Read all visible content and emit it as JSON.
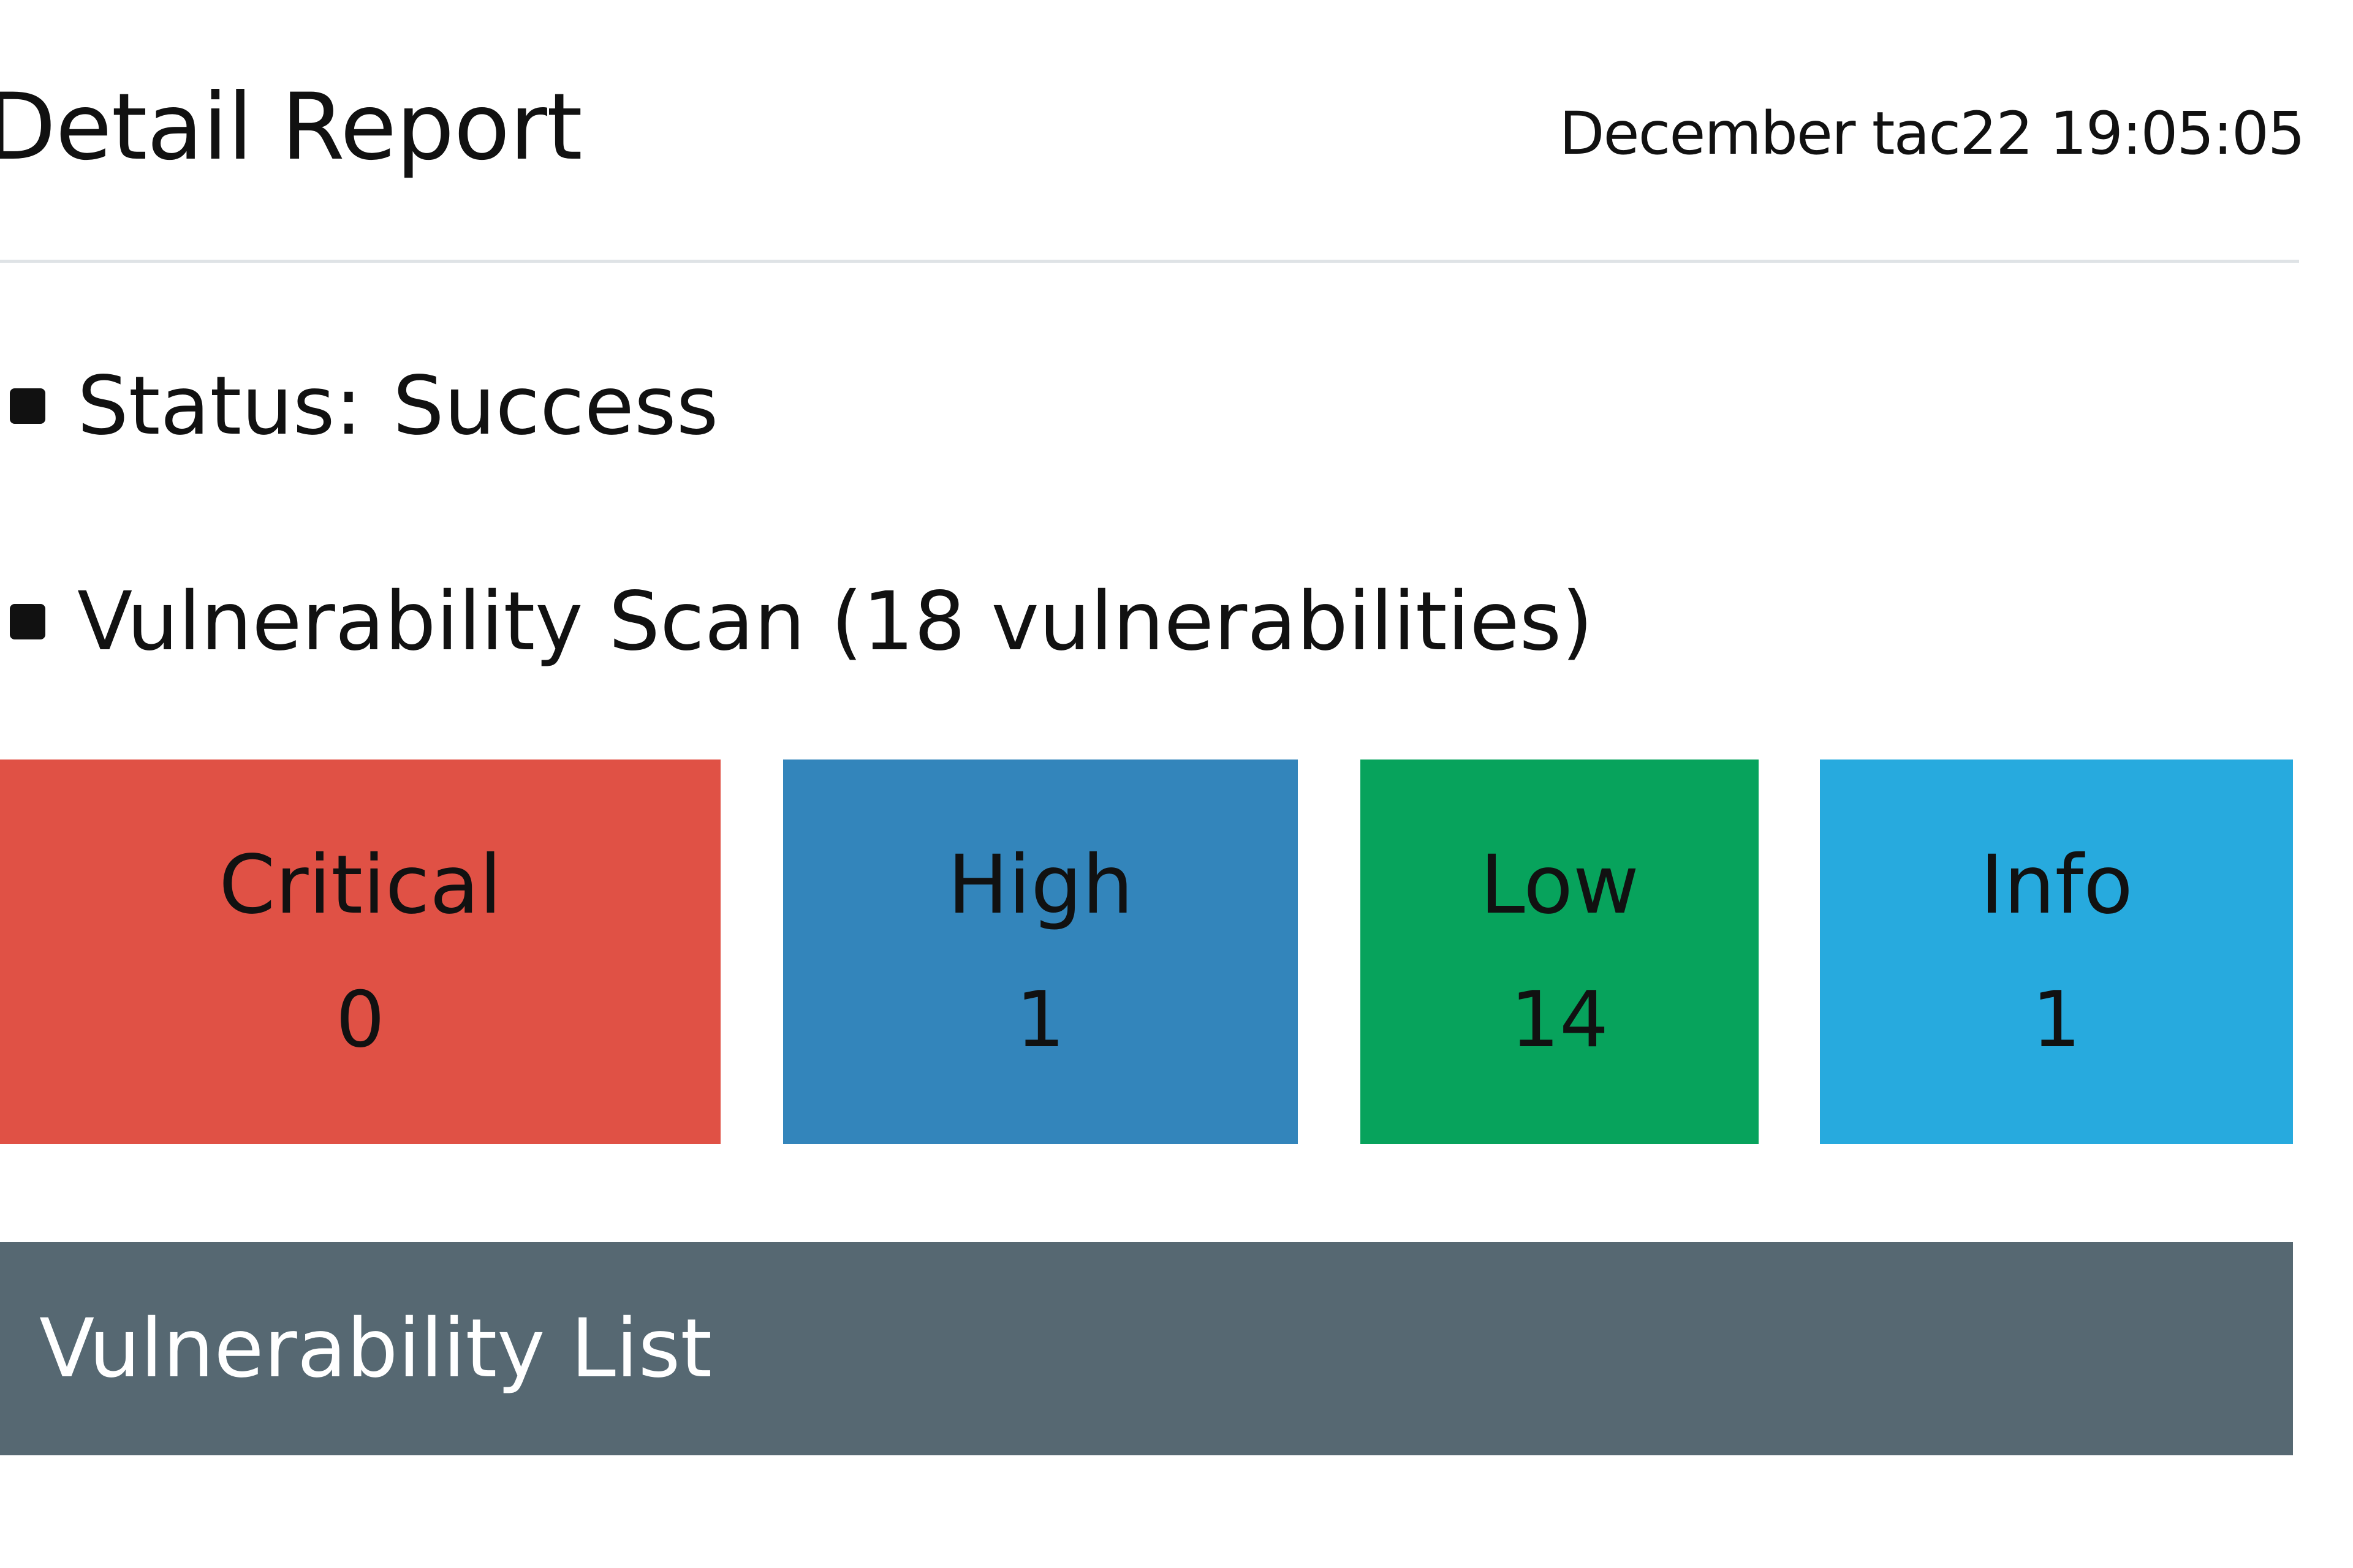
{
  "header": {
    "title": "Detail Report",
    "timestamp": "December tac22 19:05:05"
  },
  "summary": {
    "status_label": "Status:",
    "status_value": "Success",
    "scan_text": "Vulnerability Scan (18 vulnerabilities)"
  },
  "severity_cards": [
    {
      "label": "Critical",
      "count": "0",
      "color": "#e05145"
    },
    {
      "label": "High",
      "count": "1",
      "color": "#3385bb"
    },
    {
      "label": "Low",
      "count": "14",
      "color": "#07a35c"
    },
    {
      "label": "Info",
      "count": "1",
      "color": "#27aade"
    }
  ],
  "list_section": {
    "title": "Vulnerability List",
    "bar_color": "#566872"
  }
}
